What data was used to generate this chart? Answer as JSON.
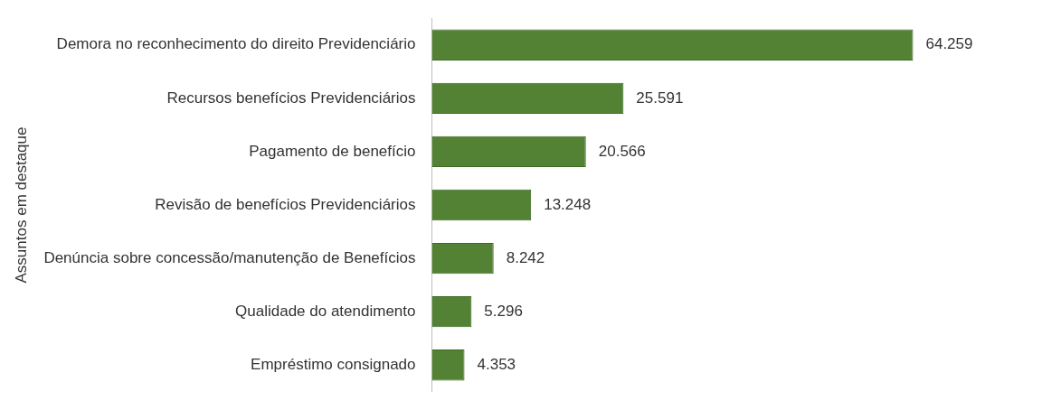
{
  "chart_data": {
    "type": "bar",
    "orientation": "horizontal",
    "ylabel": "Assuntos em destaque",
    "categories": [
      "Demora no reconhecimento do direito Previdenciário",
      "Recursos benefícios Previdenciários",
      "Pagamento de benefício",
      "Revisão de benefícios Previdenciários",
      "Denúncia sobre concessão/manutenção de Benefícios",
      "Qualidade do atendimento",
      "Empréstimo consignado"
    ],
    "values": [
      64259,
      25591,
      20566,
      13248,
      8242,
      5296,
      4353
    ],
    "value_labels": [
      "64.259",
      "25.591",
      "20.566",
      "13.248",
      "8.242",
      "5.296",
      "4.353"
    ],
    "color": "#548235",
    "legend": false
  }
}
